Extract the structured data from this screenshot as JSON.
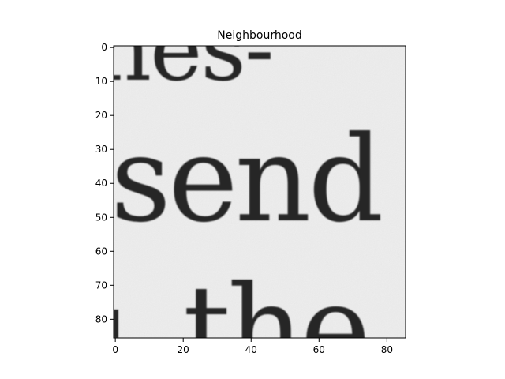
{
  "title": "Neighbourhood",
  "image_words": [
    "nes-",
    "send",
    "the"
  ],
  "axes": {
    "x_ticks": [
      0,
      20,
      40,
      60,
      80
    ],
    "y_ticks": [
      0,
      10,
      20,
      30,
      40,
      50,
      60,
      70,
      80
    ],
    "x_range": [
      -0.5,
      85.5
    ],
    "y_range": [
      85.5,
      -0.5
    ]
  },
  "colors": {
    "background": "#ffffff",
    "paper": "#ededed",
    "ink": "#262626",
    "frame": "#000000"
  }
}
